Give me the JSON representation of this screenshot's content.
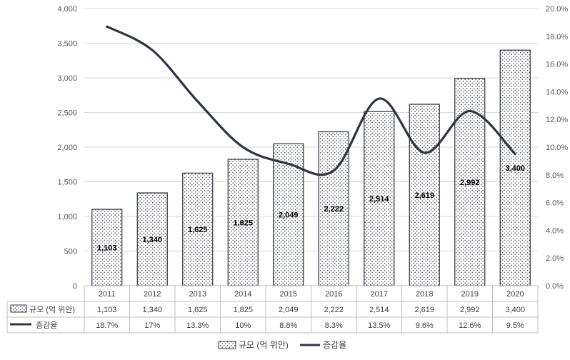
{
  "chart_data": {
    "type": "bar",
    "categories": [
      "2011",
      "2012",
      "2013",
      "2014",
      "2015",
      "2016",
      "2017",
      "2018",
      "2019",
      "2020"
    ],
    "series": [
      {
        "name": "규모 (억 위안)",
        "kind": "bar",
        "axis": "left",
        "values": [
          1103,
          1340,
          1625,
          1825,
          2049,
          2222,
          2514,
          2619,
          2992,
          3400
        ],
        "labels": [
          "1,103",
          "1,340",
          "1,625",
          "1,825",
          "2,049",
          "2,222",
          "2,514",
          "2,619",
          "2,992",
          "3,400"
        ],
        "pattern": "dotted",
        "color": "#2e3445"
      },
      {
        "name": "증감율",
        "kind": "line",
        "axis": "right",
        "values": [
          18.7,
          17,
          13.3,
          10,
          8.8,
          8.3,
          13.5,
          9.6,
          12.6,
          9.5
        ],
        "labels": [
          "18.7%",
          "17%",
          "13.3%",
          "10%",
          "8.8%",
          "8.3%",
          "13.5%",
          "9.6%",
          "12.6%",
          "9.5%"
        ],
        "smooth": true,
        "color": "#2e3445"
      }
    ],
    "y_left": {
      "lim": [
        0,
        4000
      ],
      "ticks": [
        "0",
        "500",
        "1,000",
        "1,500",
        "2,000",
        "2,500",
        "3,000",
        "3,500",
        "4,000"
      ]
    },
    "y_right": {
      "lim": [
        0,
        20
      ],
      "ticks": [
        "0.0%",
        "2.0%",
        "4.0%",
        "6.0%",
        "8.0%",
        "10.0%",
        "12.0%",
        "14.0%",
        "16.0%",
        "18.0%",
        "20.0%"
      ]
    },
    "grid": true,
    "data_table": true,
    "legend": {
      "placement": "bottom",
      "entries": [
        "규모 (억 위안)",
        "증감율"
      ]
    }
  }
}
